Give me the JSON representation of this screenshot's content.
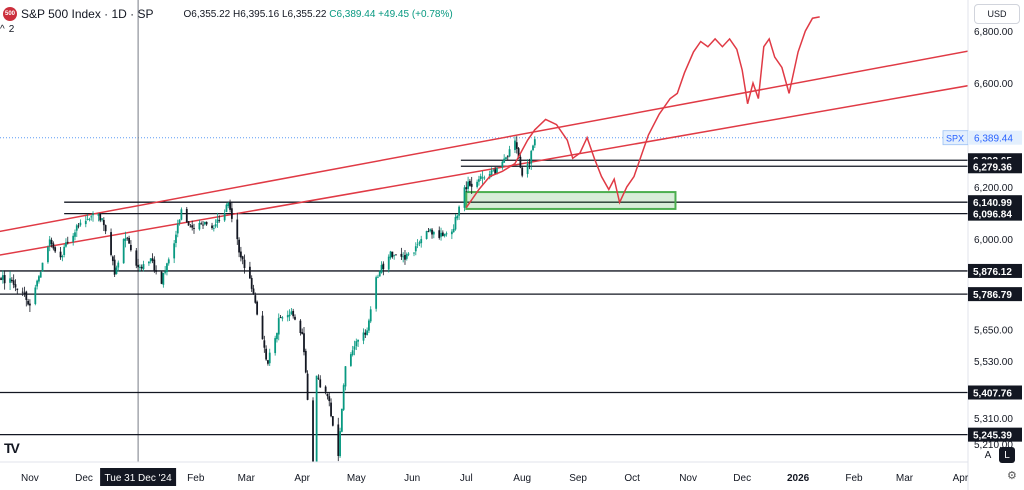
{
  "header": {
    "logo_text": "500",
    "symbol": "S&P 500 Index · 1D · SP",
    "open": "O6,355.22",
    "high": "H6,395.16",
    "low": "L6,355.22",
    "close": "C6,389.44",
    "change": "+49.45 (+0.78%)",
    "indicator_count": "2",
    "indicator_chevron": "^"
  },
  "currency": "USD",
  "branding": "TV",
  "buttons": {
    "auto": "A",
    "log": "L"
  },
  "colors": {
    "up": "#089981",
    "down": "#131722",
    "projection": "#e03a45",
    "zone": "#4caf50",
    "levels": "#131722"
  },
  "chart_data": {
    "type": "candlestick",
    "ylim": [
      5140,
      6920
    ],
    "y_ticks": [
      {
        "v": 6800,
        "label": "6,800.00"
      },
      {
        "v": 6600,
        "label": "6,600.00"
      },
      {
        "v": 6200,
        "label": "6,200.00"
      },
      {
        "v": 6000,
        "label": "6,000.00"
      },
      {
        "v": 5650,
        "label": "5,650.00"
      },
      {
        "v": 5530,
        "label": "5,530.00"
      },
      {
        "v": 5310,
        "label": "5,310.00"
      },
      {
        "v": 5210,
        "label": "5,210.00"
      }
    ],
    "x_ticks": [
      "Nov",
      "Dec",
      "Feb",
      "Mar",
      "Apr",
      "May",
      "Jun",
      "Jul",
      "Aug",
      "Sep",
      "Oct",
      "Nov",
      "Dec",
      "2026",
      "Feb",
      "Mar",
      "Apr"
    ],
    "x_tick_dates": [
      "2024-11-01",
      "2024-12-01",
      "2025-02-01",
      "2025-03-01",
      "2025-04-01",
      "2025-05-01",
      "2025-06-01",
      "2025-07-01",
      "2025-08-01",
      "2025-09-01",
      "2025-10-01",
      "2025-11-01",
      "2025-12-01",
      "2026-01-01",
      "2026-02-01",
      "2026-03-01",
      "2026-04-01"
    ],
    "crosshair": {
      "date": "2024-12-31",
      "label": "Tue 31 Dec '24"
    },
    "current_price": {
      "symbol": "SPX",
      "value": 6389.44,
      "label": "6,389.44"
    },
    "horizontal_levels": [
      {
        "value": 6302.65,
        "label": "6,302.65",
        "start": "2025-06-28"
      },
      {
        "value": 6279.36,
        "label": "6,279.36",
        "start": "2025-06-28"
      },
      {
        "value": 6140.99,
        "label": "6,140.99",
        "start": "2024-11-20"
      },
      {
        "value": 6096.84,
        "label": "6,096.84",
        "start": "2024-11-20"
      },
      {
        "value": 5876.12,
        "label": "5,876.12",
        "start": "2024-10-01"
      },
      {
        "value": 5786.79,
        "label": "5,786.79",
        "start": "2024-10-01"
      },
      {
        "value": 5407.76,
        "label": "5,407.76",
        "start": "2024-10-01"
      },
      {
        "value": 5245.39,
        "label": "5,245.39",
        "start": "2024-10-01"
      }
    ],
    "channel_lines": [
      {
        "from": {
          "date": "2024-10-01",
          "value": 6010
        },
        "to": {
          "date": "2026-04-30",
          "value": 6755
        }
      },
      {
        "from": {
          "date": "2024-10-01",
          "value": 5920
        },
        "to": {
          "date": "2026-04-30",
          "value": 6620
        }
      }
    ],
    "support_zone": {
      "from": "2025-07-01",
      "to": "2025-10-25",
      "low": 6115,
      "high": 6180
    },
    "projection_path": [
      [
        "2025-07-01",
        6120
      ],
      [
        "2025-07-08",
        6190
      ],
      [
        "2025-07-14",
        6240
      ],
      [
        "2025-07-21",
        6260
      ],
      [
        "2025-07-28",
        6290
      ],
      [
        "2025-08-04",
        6380
      ],
      [
        "2025-08-08",
        6420
      ],
      [
        "2025-08-14",
        6460
      ],
      [
        "2025-08-20",
        6440
      ],
      [
        "2025-08-26",
        6380
      ],
      [
        "2025-08-29",
        6310
      ],
      [
        "2025-09-02",
        6330
      ],
      [
        "2025-09-06",
        6390
      ],
      [
        "2025-09-10",
        6310
      ],
      [
        "2025-09-14",
        6240
      ],
      [
        "2025-09-18",
        6190
      ],
      [
        "2025-09-21",
        6230
      ],
      [
        "2025-09-24",
        6140
      ],
      [
        "2025-09-28",
        6200
      ],
      [
        "2025-10-02",
        6240
      ],
      [
        "2025-10-06",
        6320
      ],
      [
        "2025-10-10",
        6400
      ],
      [
        "2025-10-16",
        6480
      ],
      [
        "2025-10-22",
        6540
      ],
      [
        "2025-10-26",
        6560
      ],
      [
        "2025-10-30",
        6640
      ],
      [
        "2025-11-04",
        6720
      ],
      [
        "2025-11-08",
        6760
      ],
      [
        "2025-11-12",
        6740
      ],
      [
        "2025-11-16",
        6770
      ],
      [
        "2025-11-20",
        6740
      ],
      [
        "2025-11-24",
        6770
      ],
      [
        "2025-11-28",
        6730
      ],
      [
        "2025-12-01",
        6650
      ],
      [
        "2025-12-04",
        6520
      ],
      [
        "2025-12-07",
        6600
      ],
      [
        "2025-12-10",
        6540
      ],
      [
        "2025-12-13",
        6740
      ],
      [
        "2025-12-16",
        6770
      ],
      [
        "2025-12-19",
        6700
      ],
      [
        "2025-12-23",
        6660
      ],
      [
        "2025-12-27",
        6560
      ],
      [
        "2026-01-01",
        6720
      ],
      [
        "2026-01-05",
        6800
      ],
      [
        "2026-01-09",
        6850
      ],
      [
        "2026-01-13",
        6855
      ]
    ],
    "series": [
      {
        "name": "SPX daily close",
        "close_path": [
          [
            "2024-10-01",
            5880
          ],
          [
            "2024-10-10",
            5860
          ],
          [
            "2024-10-20",
            5840
          ],
          [
            "2024-10-28",
            5790
          ],
          [
            "2024-11-01",
            5730
          ],
          [
            "2024-11-07",
            5880
          ],
          [
            "2024-11-12",
            5990
          ],
          [
            "2024-11-18",
            5920
          ],
          [
            "2024-11-22",
            5990
          ],
          [
            "2024-11-28",
            6050
          ],
          [
            "2024-12-06",
            6090
          ],
          [
            "2024-12-12",
            6070
          ],
          [
            "2024-12-18",
            5870
          ],
          [
            "2024-12-24",
            6020
          ],
          [
            "2024-12-31",
            5880
          ],
          [
            "2025-01-07",
            5920
          ],
          [
            "2025-01-13",
            5840
          ],
          [
            "2025-01-20",
            5980
          ],
          [
            "2025-01-24",
            6110
          ],
          [
            "2025-01-29",
            6040
          ],
          [
            "2025-02-05",
            6060
          ],
          [
            "2025-02-12",
            6050
          ],
          [
            "2025-02-19",
            6140
          ],
          [
            "2025-02-25",
            5950
          ],
          [
            "2025-03-03",
            5850
          ],
          [
            "2025-03-10",
            5610
          ],
          [
            "2025-03-13",
            5520
          ],
          [
            "2025-03-19",
            5680
          ],
          [
            "2025-03-26",
            5720
          ],
          [
            "2025-04-01",
            5630
          ],
          [
            "2025-04-04",
            5390
          ],
          [
            "2025-04-08",
            4980
          ],
          [
            "2025-04-09",
            5460
          ],
          [
            "2025-04-15",
            5400
          ],
          [
            "2025-04-21",
            5160
          ],
          [
            "2025-04-25",
            5520
          ],
          [
            "2025-05-01",
            5600
          ],
          [
            "2025-05-07",
            5640
          ],
          [
            "2025-05-12",
            5850
          ],
          [
            "2025-05-20",
            5940
          ],
          [
            "2025-05-26",
            5920
          ],
          [
            "2025-06-02",
            5960
          ],
          [
            "2025-06-10",
            6040
          ],
          [
            "2025-06-16",
            6010
          ],
          [
            "2025-06-23",
            6020
          ],
          [
            "2025-06-30",
            6200
          ],
          [
            "2025-07-08",
            6230
          ],
          [
            "2025-07-15",
            6250
          ],
          [
            "2025-07-22",
            6300
          ],
          [
            "2025-07-28",
            6380
          ],
          [
            "2025-08-01",
            6240
          ],
          [
            "2025-08-05",
            6300
          ],
          [
            "2025-08-08",
            6389.44
          ]
        ]
      }
    ]
  }
}
